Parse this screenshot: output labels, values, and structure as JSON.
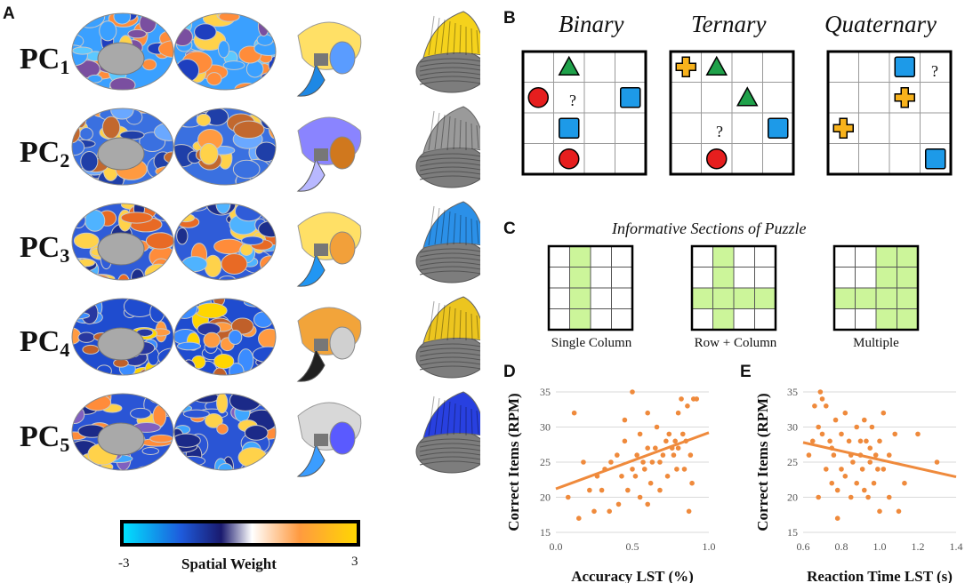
{
  "panels": {
    "A": "A",
    "B": "B",
    "C": "C",
    "D": "D",
    "E": "E"
  },
  "pc_rows": [
    {
      "base": "PC",
      "sub": "1"
    },
    {
      "base": "PC",
      "sub": "2"
    },
    {
      "base": "PC",
      "sub": "3"
    },
    {
      "base": "PC",
      "sub": "4"
    },
    {
      "base": "PC",
      "sub": "5"
    }
  ],
  "colorbar": {
    "min": "-3",
    "max": "3",
    "label": "Spatial Weight",
    "colors": [
      "#00e5ff",
      "#1e5bdc",
      "#1a1a6e",
      "#ffffff",
      "#ff9a40",
      "#ffd800"
    ]
  },
  "puzzles": [
    {
      "title": "Binary",
      "color": "#1f7fd6",
      "question": "?"
    },
    {
      "title": "Ternary",
      "color": "#f07b2a",
      "question": "?"
    },
    {
      "title": "Quaternary",
      "color": "#b8121b",
      "question": "?"
    }
  ],
  "informative": {
    "title": "Informative Sections of Puzzle",
    "items": [
      "Single Column",
      "Row + Column",
      "Multiple"
    ],
    "highlight_color": "#ccf59a"
  },
  "chart_data": [
    {
      "type": "scatter",
      "xlabel": "Accuracy LST (%)",
      "ylabel": "Correct Items (RPM)",
      "xlim": [
        0.0,
        1.0
      ],
      "ylim": [
        15,
        35
      ],
      "xticks": [
        "0.0",
        "0.5",
        "1.0"
      ],
      "yticks": [
        "15",
        "20",
        "25",
        "30",
        "35"
      ],
      "color": "#ef8a3c",
      "points": [
        [
          0.08,
          20
        ],
        [
          0.12,
          32
        ],
        [
          0.15,
          17
        ],
        [
          0.18,
          25
        ],
        [
          0.22,
          21
        ],
        [
          0.27,
          23
        ],
        [
          0.3,
          21
        ],
        [
          0.32,
          24
        ],
        [
          0.35,
          18
        ],
        [
          0.36,
          25
        ],
        [
          0.4,
          26
        ],
        [
          0.41,
          19
        ],
        [
          0.43,
          23
        ],
        [
          0.45,
          28
        ],
        [
          0.47,
          21
        ],
        [
          0.5,
          35
        ],
        [
          0.5,
          24
        ],
        [
          0.52,
          23
        ],
        [
          0.53,
          26
        ],
        [
          0.55,
          29
        ],
        [
          0.55,
          20
        ],
        [
          0.57,
          25
        ],
        [
          0.58,
          24
        ],
        [
          0.6,
          32
        ],
        [
          0.6,
          27
        ],
        [
          0.62,
          22
        ],
        [
          0.63,
          25
        ],
        [
          0.65,
          27
        ],
        [
          0.66,
          30
        ],
        [
          0.68,
          21
        ],
        [
          0.68,
          25
        ],
        [
          0.7,
          26
        ],
        [
          0.72,
          28
        ],
        [
          0.73,
          23
        ],
        [
          0.74,
          29
        ],
        [
          0.76,
          27
        ],
        [
          0.77,
          26
        ],
        [
          0.78,
          28
        ],
        [
          0.79,
          24
        ],
        [
          0.8,
          32
        ],
        [
          0.8,
          27
        ],
        [
          0.82,
          34
        ],
        [
          0.83,
          29
        ],
        [
          0.84,
          24
        ],
        [
          0.85,
          28
        ],
        [
          0.86,
          33
        ],
        [
          0.87,
          18
        ],
        [
          0.88,
          26
        ],
        [
          0.89,
          22
        ],
        [
          0.9,
          34
        ],
        [
          0.92,
          34
        ],
        [
          0.6,
          19
        ],
        [
          0.45,
          31
        ],
        [
          0.25,
          18
        ]
      ],
      "trend": [
        [
          0.0,
          21.2
        ],
        [
          1.0,
          29.2
        ]
      ]
    },
    {
      "type": "scatter",
      "xlabel": "Reaction Time LST (s)",
      "ylabel": "Correct Items (RPM)",
      "xlim": [
        0.6,
        1.4
      ],
      "ylim": [
        15,
        35
      ],
      "xticks": [
        "0.6",
        "0.8",
        "1.0",
        "1.2",
        "1.4"
      ],
      "yticks": [
        "15",
        "20",
        "25",
        "30",
        "35"
      ],
      "color": "#ef8a3c",
      "points": [
        [
          0.63,
          26
        ],
        [
          0.65,
          28
        ],
        [
          0.66,
          33
        ],
        [
          0.68,
          20
        ],
        [
          0.69,
          35
        ],
        [
          0.7,
          34
        ],
        [
          0.7,
          29
        ],
        [
          0.72,
          33
        ],
        [
          0.72,
          24
        ],
        [
          0.74,
          28
        ],
        [
          0.75,
          22
        ],
        [
          0.76,
          26
        ],
        [
          0.77,
          31
        ],
        [
          0.78,
          21
        ],
        [
          0.78,
          17
        ],
        [
          0.8,
          29
        ],
        [
          0.8,
          24
        ],
        [
          0.82,
          32
        ],
        [
          0.82,
          23
        ],
        [
          0.84,
          28
        ],
        [
          0.85,
          26
        ],
        [
          0.85,
          20
        ],
        [
          0.86,
          25
        ],
        [
          0.88,
          30
        ],
        [
          0.88,
          22
        ],
        [
          0.9,
          28
        ],
        [
          0.9,
          26
        ],
        [
          0.91,
          24
        ],
        [
          0.92,
          31
        ],
        [
          0.92,
          21
        ],
        [
          0.93,
          28
        ],
        [
          0.94,
          20
        ],
        [
          0.95,
          27
        ],
        [
          0.95,
          25
        ],
        [
          0.96,
          30
        ],
        [
          0.97,
          22
        ],
        [
          0.98,
          26
        ],
        [
          0.99,
          24
        ],
        [
          1.0,
          28
        ],
        [
          1.0,
          18
        ],
        [
          1.02,
          32
        ],
        [
          1.02,
          24
        ],
        [
          1.05,
          26
        ],
        [
          1.05,
          20
        ],
        [
          1.08,
          29
        ],
        [
          1.1,
          18
        ],
        [
          1.13,
          22
        ],
        [
          1.2,
          29
        ],
        [
          1.3,
          25
        ],
        [
          0.75,
          27
        ],
        [
          0.68,
          30
        ]
      ],
      "trend": [
        [
          0.6,
          27.8
        ],
        [
          1.4,
          22.9
        ]
      ]
    }
  ]
}
